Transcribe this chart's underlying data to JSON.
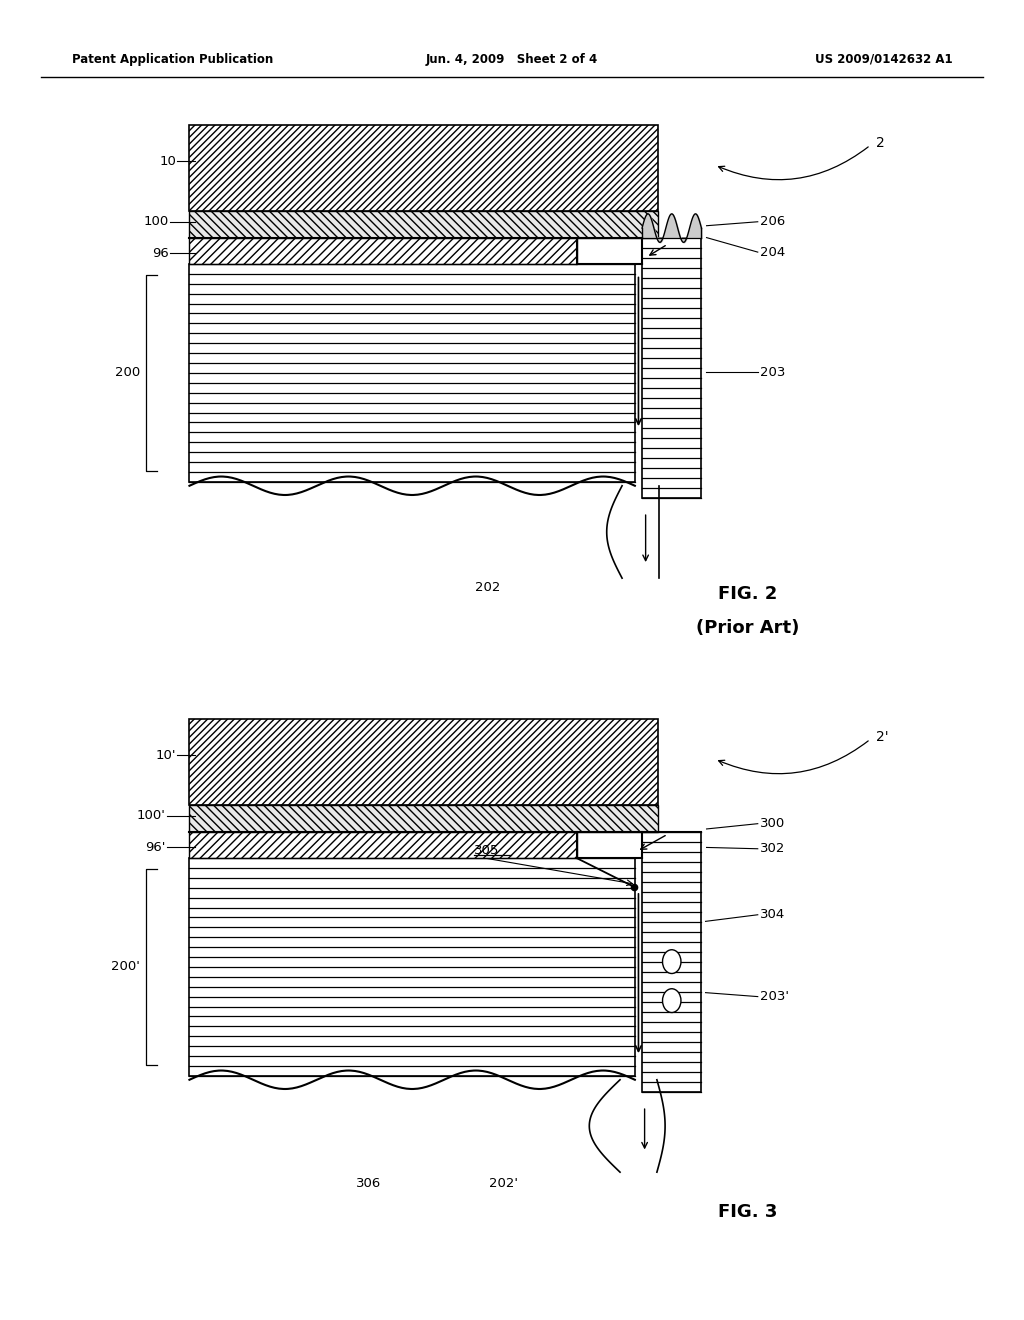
{
  "bg_color": "#ffffff",
  "fig_width": 10.24,
  "fig_height": 13.2,
  "header": {
    "left": "Patent Application Publication",
    "center": "Jun. 4, 2009   Sheet 2 of 4",
    "right": "US 2009/0142632 A1"
  }
}
